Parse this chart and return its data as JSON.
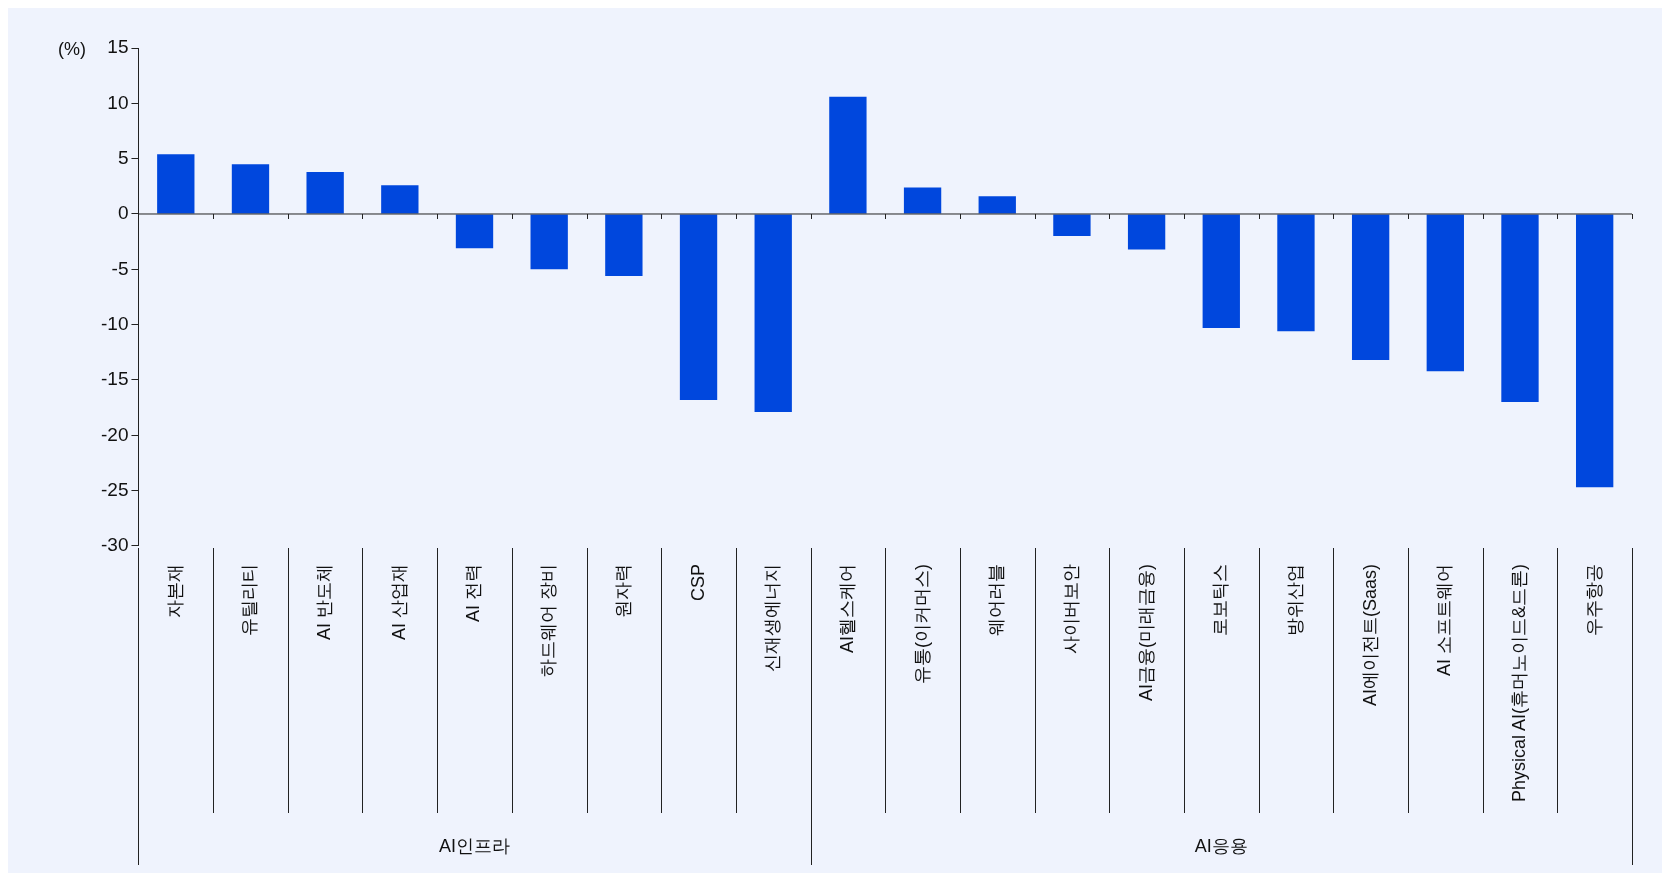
{
  "chart_data": {
    "type": "bar",
    "ylabel": "(%)",
    "categories": [
      "자본재",
      "유틸리티",
      "AI 반도체",
      "AI 산업재",
      "AI 전력",
      "하드웨어 장비",
      "원자력",
      "CSP",
      "신재생에너지",
      "AI헬스케어",
      "유통(이커머스)",
      "웨어러블",
      "사이버보안",
      "AI금융(미래금융)",
      "로보틱스",
      "방위산업",
      "AI에이전트(Saas)",
      "AI 소프트웨어",
      "Physical AI(휴머노이드&드론)",
      "우주항공"
    ],
    "values": [
      5.4,
      4.5,
      3.8,
      2.6,
      -3.1,
      -5.0,
      -5.6,
      -16.8,
      -17.9,
      10.6,
      2.4,
      1.6,
      -2.0,
      -3.2,
      -10.3,
      -10.6,
      -13.2,
      -14.2,
      -17.0,
      -24.7
    ],
    "color": "#0047dd",
    "ylim": [
      -30,
      15
    ],
    "yticks": [
      -30,
      -25,
      -20,
      -15,
      -10,
      -5,
      0,
      5,
      10,
      15
    ],
    "annotations": [
      "AI인프라",
      "AI응용"
    ]
  }
}
